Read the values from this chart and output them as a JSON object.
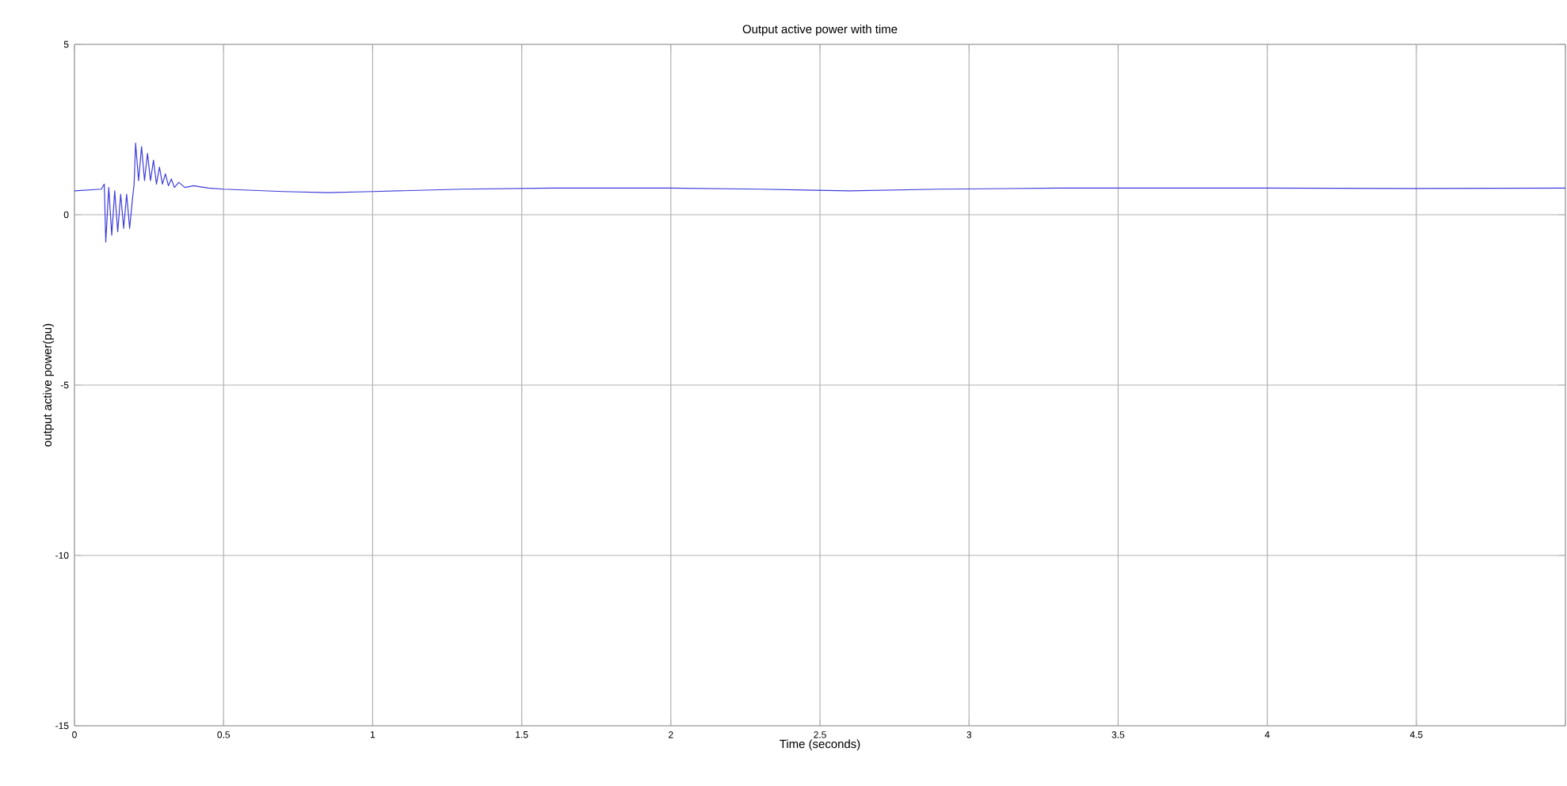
{
  "chart_data": {
    "type": "line",
    "title": "Output active power with time",
    "xlabel": "Time (seconds)",
    "ylabel": "output active power(pu)",
    "xlim": [
      0,
      5
    ],
    "ylim": [
      -15,
      5
    ],
    "xticks": [
      0,
      0.5,
      1,
      1.5,
      2,
      2.5,
      3,
      3.5,
      4,
      4.5,
      {
        "value": 5,
        "label": null
      }
    ],
    "yticks": [
      -15,
      -10,
      -5,
      0,
      5
    ],
    "grid": true,
    "series": [
      {
        "color": "#3b3bdc",
        "x": [
          0,
          0.09,
          0.1,
          0.105,
          0.115,
          0.125,
          0.135,
          0.145,
          0.155,
          0.165,
          0.175,
          0.185,
          0.195,
          0.2,
          0.205,
          0.215,
          0.225,
          0.235,
          0.245,
          0.255,
          0.265,
          0.275,
          0.285,
          0.295,
          0.305,
          0.315,
          0.325,
          0.335,
          0.35,
          0.37,
          0.4,
          0.45,
          0.5,
          0.7,
          0.85,
          1.0,
          1.3,
          1.6,
          2.0,
          2.3,
          2.6,
          2.9,
          3.3,
          4.0,
          4.5,
          5.0
        ],
        "values": [
          0.7,
          0.75,
          0.9,
          -0.8,
          0.8,
          -0.6,
          0.7,
          -0.5,
          0.6,
          -0.4,
          0.6,
          -0.4,
          0.5,
          0.9,
          2.1,
          1.0,
          2.0,
          1.0,
          1.8,
          1.0,
          1.6,
          0.9,
          1.4,
          0.9,
          1.2,
          0.85,
          1.05,
          0.8,
          0.95,
          0.8,
          0.85,
          0.78,
          0.75,
          0.68,
          0.65,
          0.68,
          0.75,
          0.78,
          0.78,
          0.75,
          0.7,
          0.75,
          0.78,
          0.78,
          0.77,
          0.78
        ]
      }
    ]
  }
}
